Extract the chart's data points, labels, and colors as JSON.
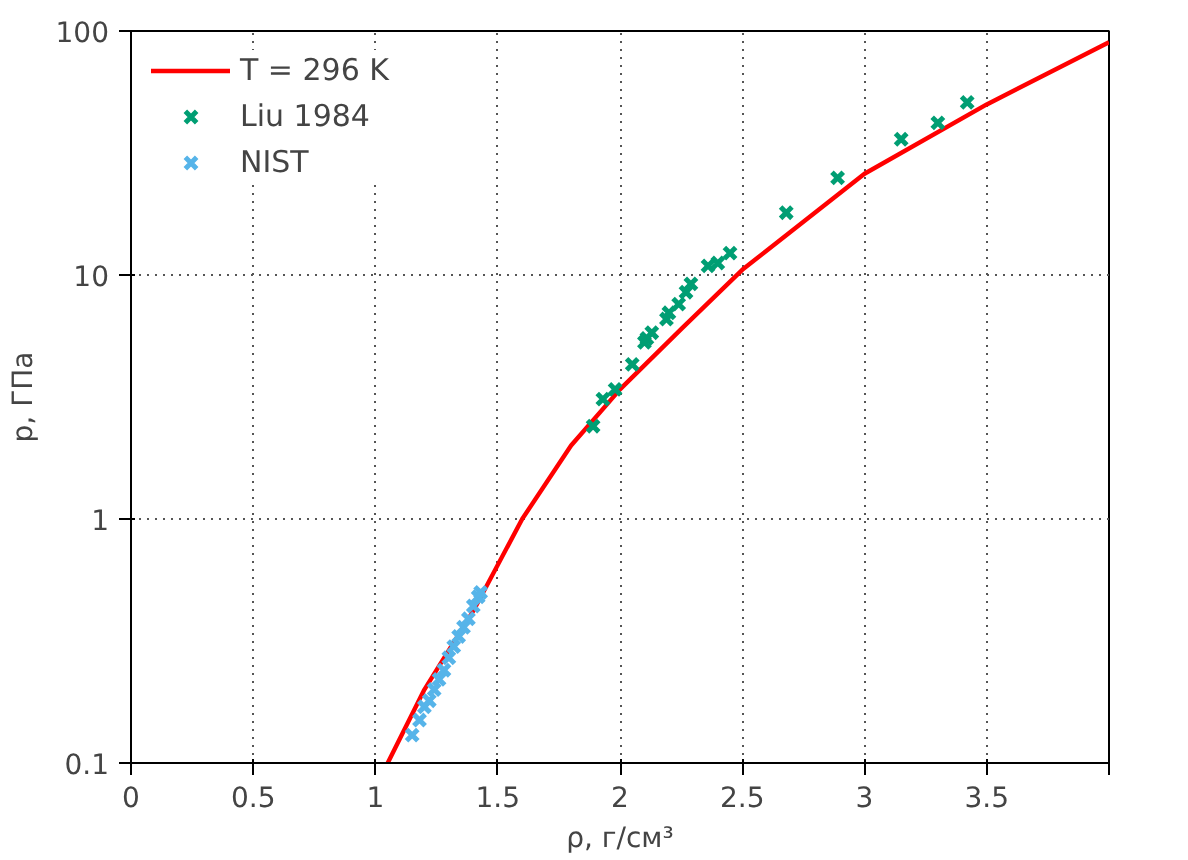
{
  "chart_data": {
    "type": "line",
    "xlabel": "ρ, г/см³",
    "ylabel": "p, ГПа",
    "log": "y",
    "grid": true,
    "legend": "top left",
    "xlim": [
      0,
      4
    ],
    "ylim": [
      0.1,
      100
    ],
    "xticks": [
      0,
      0.5,
      1,
      1.5,
      2,
      2.5,
      3,
      3.5,
      {
        "value": 4,
        "label": null
      }
    ],
    "yticks": [
      0.1,
      1,
      10,
      100
    ],
    "series": [
      {
        "name": "T = 296 K",
        "color": "#ff0000",
        "marker": "none",
        "line_style": "solid",
        "x": [
          1.05,
          1.2,
          1.4,
          1.6,
          1.8,
          2.0,
          2.25,
          2.5,
          3.0,
          3.5,
          4.0
        ],
        "values": [
          0.1,
          0.2,
          0.42,
          1.0,
          2.0,
          3.4,
          6.0,
          10.5,
          26,
          50,
          90
        ]
      },
      {
        "name": "Liu 1984",
        "type": "scatter",
        "color": "#009e73",
        "marker": "cross",
        "x": [
          1.89,
          1.93,
          1.98,
          2.05,
          2.1,
          2.11,
          2.13,
          2.19,
          2.2,
          2.24,
          2.27,
          2.29,
          2.36,
          2.4,
          2.45,
          2.68,
          2.89,
          3.15,
          3.3,
          3.42
        ],
        "values": [
          2.4,
          3.1,
          3.4,
          4.3,
          5.3,
          5.5,
          5.8,
          6.6,
          7.0,
          7.6,
          8.5,
          9.2,
          10.9,
          11.2,
          12.3,
          18,
          25,
          36,
          42,
          51
        ]
      },
      {
        "name": "NIST",
        "type": "scatter",
        "color": "#56b4e9",
        "marker": "cross",
        "x": [
          1.15,
          1.18,
          1.2,
          1.22,
          1.24,
          1.26,
          1.28,
          1.3,
          1.32,
          1.34,
          1.36,
          1.38,
          1.4,
          1.42,
          1.43
        ],
        "values": [
          0.13,
          0.15,
          0.17,
          0.18,
          0.2,
          0.22,
          0.24,
          0.27,
          0.3,
          0.33,
          0.36,
          0.39,
          0.44,
          0.48,
          0.5
        ]
      }
    ]
  }
}
